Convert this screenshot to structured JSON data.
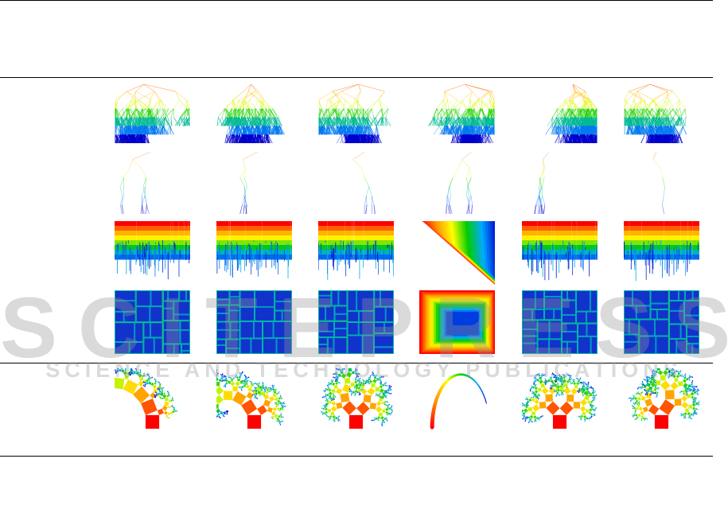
{
  "figure": {
    "rows": [
      {
        "id": "node-link",
        "style": "nodelink"
      },
      {
        "id": "node-link-compact",
        "style": "nodelink-sparse"
      },
      {
        "id": "icicle",
        "style": "icicle"
      },
      {
        "id": "treemap",
        "style": "treemap"
      },
      {
        "id": "pythagoras-tree",
        "style": "pythagoras"
      }
    ],
    "datasets": [
      "dataset-1",
      "dataset-2",
      "dataset-3",
      "dataset-4",
      "dataset-5",
      "dataset-6"
    ],
    "color_scale": [
      "#ff0000",
      "#ff9900",
      "#ffff00",
      "#00cc00",
      "#00aaff",
      "#0000cc"
    ]
  },
  "watermark": {
    "logo_text": "SCITEPRESS",
    "tagline": "SCIENCE AND TECHNOLOGY PUBLICATIONS"
  }
}
